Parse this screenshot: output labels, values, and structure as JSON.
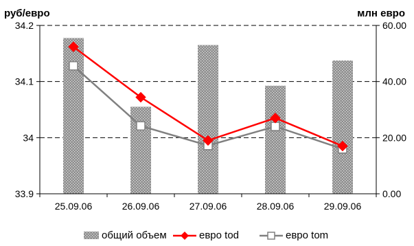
{
  "chart_data": {
    "type": "bar",
    "categories": [
      "25.09.06",
      "26.09.06",
      "27.09.06",
      "28.09.06",
      "29.09.06"
    ],
    "left_axis": {
      "label": "руб/евро",
      "ylim": [
        33.9,
        34.2
      ],
      "ticks": [
        "33.9",
        "34",
        "34.1",
        "34.2"
      ],
      "tick_values": [
        33.9,
        34.0,
        34.1,
        34.2
      ]
    },
    "right_axis": {
      "label": "млн евро",
      "ylim": [
        0,
        60
      ],
      "ticks": [
        "0.00",
        "20.00",
        "40.00",
        "60.00"
      ],
      "tick_values": [
        0,
        20,
        40,
        60
      ]
    },
    "series": [
      {
        "name": "общий объем",
        "type": "bar",
        "axis": "right",
        "values": [
          55.5,
          31.0,
          53.0,
          38.5,
          47.5
        ],
        "color": "#9a9a9a"
      },
      {
        "name": "евро tod",
        "type": "line",
        "axis": "left",
        "marker": "diamond",
        "values": [
          34.162,
          34.072,
          33.995,
          34.035,
          33.985
        ],
        "color": "#ff0000"
      },
      {
        "name": "евро tom",
        "type": "line",
        "axis": "left",
        "marker": "square",
        "values": [
          34.128,
          34.021,
          33.986,
          34.02,
          33.98
        ],
        "color": "#808080"
      }
    ],
    "grid": true,
    "legend": "bottom"
  }
}
